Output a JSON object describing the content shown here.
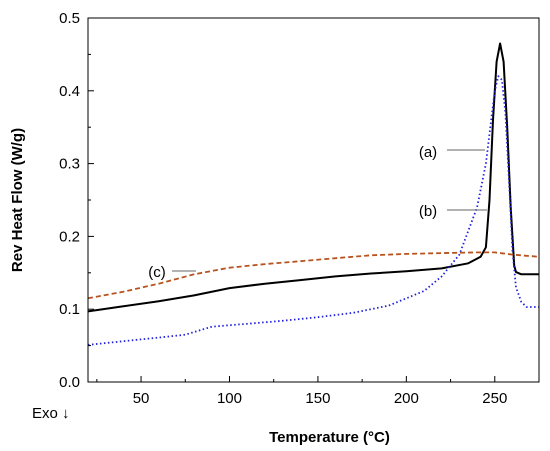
{
  "chart_data": {
    "type": "line",
    "xlabel": "Temperature (°C)",
    "ylabel": "Rev Heat Flow (W/g)",
    "xlim": [
      20,
      275
    ],
    "ylim": [
      0,
      0.5
    ],
    "xticks": [
      50,
      100,
      150,
      200,
      250
    ],
    "xtick_labels": [
      "50",
      "100",
      "150",
      "200",
      "250"
    ],
    "yticks": [
      0,
      0.1,
      0.2,
      0.3,
      0.4,
      0.5
    ],
    "ytick_labels": [
      "0.0",
      "0.1",
      "0.2",
      "0.3",
      "0.4",
      "0.5"
    ],
    "grid": false,
    "series": [
      {
        "label": "(a)",
        "color": "#000000",
        "style": "solid",
        "x": [
          20,
          40,
          60,
          80,
          100,
          120,
          140,
          160,
          180,
          200,
          220,
          235,
          242,
          245,
          247,
          249,
          251,
          253,
          255,
          257,
          259,
          261,
          262,
          265,
          270,
          275
        ],
        "y": [
          0.097,
          0.104,
          0.111,
          0.119,
          0.129,
          0.135,
          0.14,
          0.145,
          0.149,
          0.152,
          0.156,
          0.163,
          0.172,
          0.185,
          0.25,
          0.36,
          0.44,
          0.465,
          0.44,
          0.35,
          0.24,
          0.16,
          0.151,
          0.148,
          0.148,
          0.148
        ]
      },
      {
        "label": "(b)",
        "color": "#2020dd",
        "style": "dotted",
        "x": [
          20,
          40,
          60,
          75,
          90,
          110,
          130,
          150,
          170,
          190,
          210,
          220,
          230,
          240,
          245,
          248,
          250,
          252,
          254,
          256,
          258,
          260,
          262,
          265,
          268,
          275
        ],
        "y": [
          0.051,
          0.056,
          0.061,
          0.065,
          0.076,
          0.08,
          0.084,
          0.089,
          0.095,
          0.105,
          0.125,
          0.145,
          0.175,
          0.24,
          0.3,
          0.36,
          0.4,
          0.42,
          0.415,
          0.37,
          0.28,
          0.18,
          0.13,
          0.11,
          0.103,
          0.103
        ]
      },
      {
        "label": "(c)",
        "color": "#b8531f",
        "style": "dashed",
        "x": [
          20,
          40,
          60,
          80,
          100,
          120,
          140,
          160,
          180,
          200,
          220,
          240,
          250,
          260,
          275
        ],
        "y": [
          0.115,
          0.124,
          0.135,
          0.148,
          0.157,
          0.162,
          0.166,
          0.17,
          0.174,
          0.176,
          0.177,
          0.178,
          0.178,
          0.175,
          0.172
        ]
      }
    ]
  },
  "exo_label": "Exo ↓"
}
